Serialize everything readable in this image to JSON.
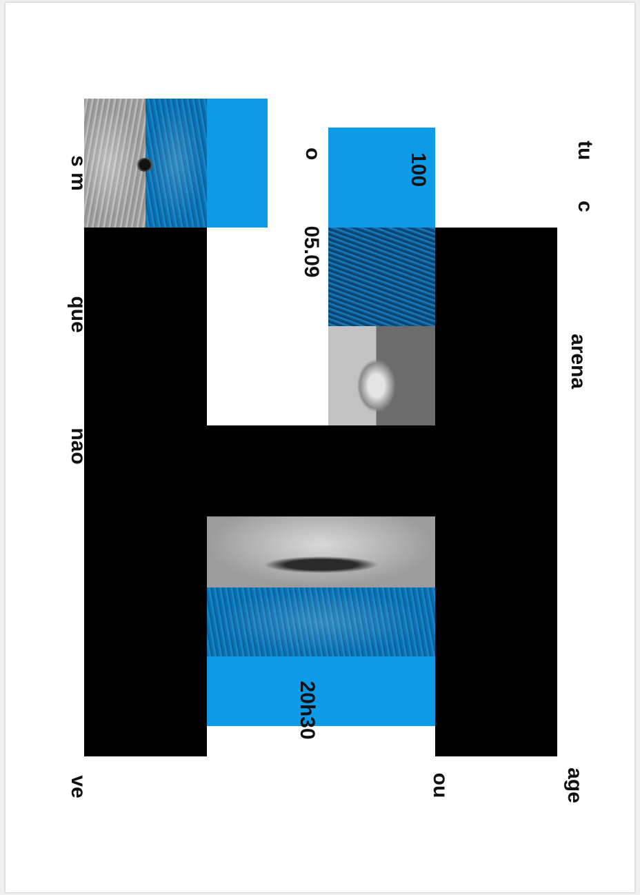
{
  "colors": {
    "background": "#ffffff",
    "black": "#000000",
    "accent_blue": "#0d9be8"
  },
  "poster": {
    "words": {
      "tu": "tu",
      "c": "c",
      "arena": "arena",
      "age": "age",
      "o": "o",
      "date": "05.09",
      "number": "100",
      "time": "20h30",
      "ou": "ou",
      "s_m": "s m",
      "que": "que",
      "nao": "nao",
      "ve": "ve"
    }
  }
}
